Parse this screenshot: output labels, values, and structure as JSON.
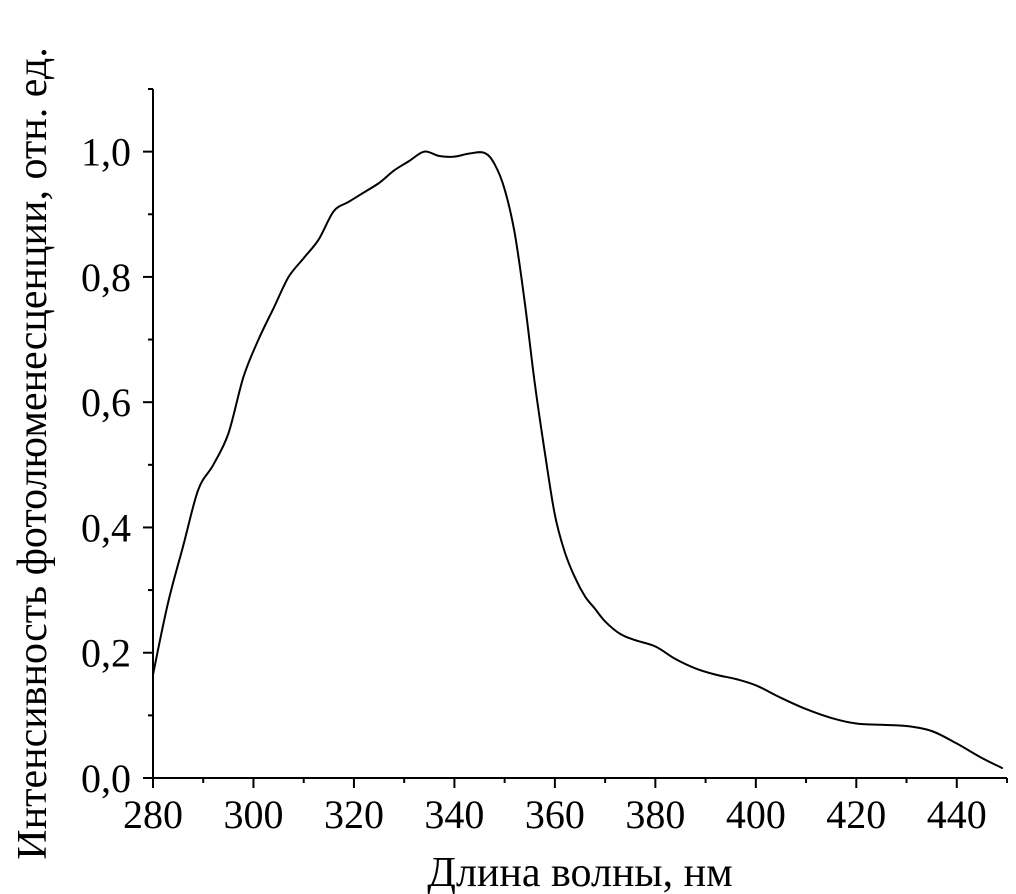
{
  "chart_data": {
    "type": "line",
    "title": "",
    "xlabel": "Длина волны, нм",
    "ylabel": "Интенсивность фотолюменесценции, отн. ед.",
    "xlim": [
      280,
      450
    ],
    "ylim": [
      0,
      1.1
    ],
    "grid": false,
    "x_ticks": [
      280,
      300,
      320,
      340,
      360,
      380,
      400,
      420,
      440
    ],
    "x_tick_labels": [
      "280",
      "300",
      "320",
      "340",
      "360",
      "380",
      "400",
      "420",
      "440"
    ],
    "x_minor_ticks": [
      290,
      310,
      330,
      350,
      370,
      390,
      410,
      430,
      450
    ],
    "y_ticks": [
      0.0,
      0.2,
      0.4,
      0.6,
      0.8,
      1.0
    ],
    "y_tick_labels": [
      "0,0",
      "0,2",
      "0,4",
      "0,6",
      "0,8",
      "1,0"
    ],
    "y_minor_ticks": [
      0.1,
      0.3,
      0.5,
      0.7,
      0.9,
      1.1
    ],
    "series": [
      {
        "x": [
          280,
          283,
          286,
          289,
          292,
          295,
          298,
          301,
          304,
          307,
          310,
          313,
          316,
          319,
          322,
          325,
          328,
          331,
          334,
          337,
          340,
          343,
          346,
          348,
          350,
          352,
          354,
          356,
          358,
          360,
          362,
          364,
          366,
          368,
          370,
          373,
          376,
          380,
          384,
          388,
          392,
          396,
          400,
          405,
          410,
          415,
          420,
          425,
          430,
          435,
          440,
          445,
          449
        ],
        "y": [
          0.165,
          0.28,
          0.37,
          0.46,
          0.5,
          0.55,
          0.64,
          0.7,
          0.75,
          0.8,
          0.83,
          0.86,
          0.905,
          0.92,
          0.935,
          0.95,
          0.97,
          0.985,
          1.0,
          0.993,
          0.992,
          0.997,
          0.998,
          0.98,
          0.94,
          0.87,
          0.76,
          0.63,
          0.52,
          0.42,
          0.36,
          0.32,
          0.29,
          0.27,
          0.25,
          0.23,
          0.22,
          0.21,
          0.19,
          0.175,
          0.165,
          0.158,
          0.148,
          0.128,
          0.11,
          0.096,
          0.087,
          0.085,
          0.083,
          0.075,
          0.055,
          0.032,
          0.016
        ]
      }
    ]
  }
}
